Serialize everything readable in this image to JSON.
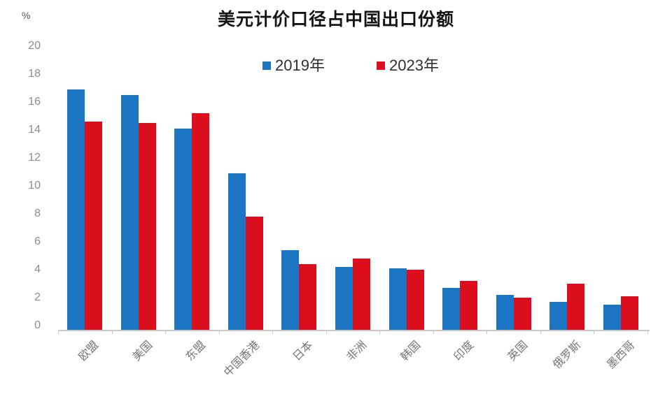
{
  "chart_data": {
    "type": "bar",
    "title": "美元计价口径占中国出口份额",
    "unit_label": "%",
    "categories": [
      "欧盟",
      "美国",
      "东盟",
      "中国香港",
      "日本",
      "非洲",
      "韩国",
      "印度",
      "英国",
      "俄罗斯",
      "墨西哥"
    ],
    "series": [
      {
        "name": "2019年",
        "color": "#1b75c2",
        "values": [
          17.2,
          16.8,
          14.4,
          11.2,
          5.7,
          4.5,
          4.4,
          3.0,
          2.5,
          2.0,
          1.8
        ]
      },
      {
        "name": "2023年",
        "color": "#da0e1c",
        "values": [
          14.9,
          14.8,
          15.5,
          8.1,
          4.7,
          5.1,
          4.3,
          3.5,
          2.3,
          3.3,
          2.4
        ]
      }
    ],
    "ylim": [
      0,
      20
    ],
    "yticks": [
      0,
      2,
      4,
      6,
      8,
      10,
      12,
      14,
      16,
      18,
      20
    ],
    "grid": false,
    "legend_position": "top-center",
    "x_label_rotation_deg": -45
  },
  "colors": {
    "axis_line": "#c9c9c9",
    "y_tick_label": "#8c8c8c",
    "category_label": "#767676",
    "title_text": "#141414",
    "legend_text": "#303030",
    "background": "#ffffff"
  }
}
